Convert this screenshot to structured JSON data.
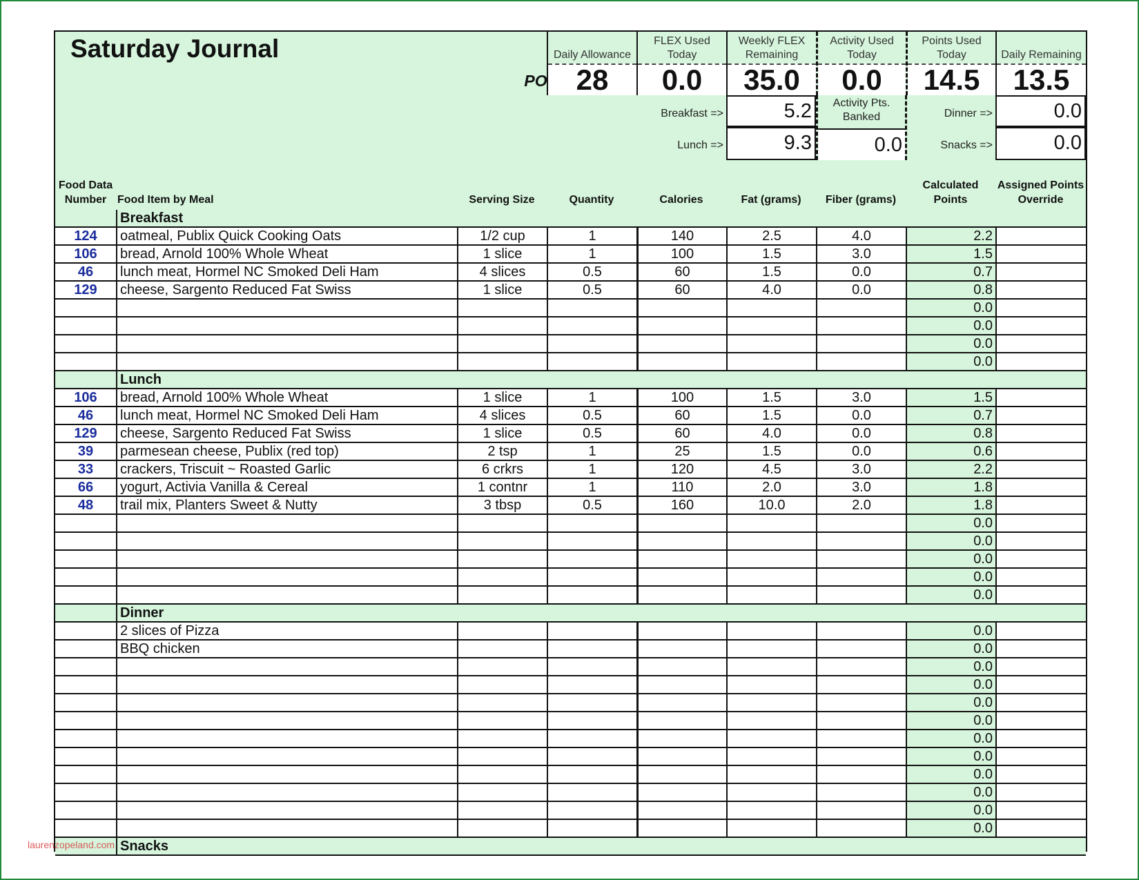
{
  "title": "Saturday Journal",
  "points_label": "POINTS®",
  "summary": [
    {
      "label": "Daily Allowance",
      "value": "28"
    },
    {
      "label": "FLEX Used Today",
      "value": "0.0"
    },
    {
      "label": "Weekly FLEX Remaining",
      "value": "35.0"
    },
    {
      "label": "Activity Used Today",
      "value": "0.0"
    },
    {
      "label": "Points Used Today",
      "value": "14.5"
    },
    {
      "label": "Daily Remaining",
      "value": "13.5"
    }
  ],
  "meal_totals": {
    "breakfast_label": "Breakfast =>",
    "breakfast_value": "5.2",
    "lunch_label": "Lunch =>",
    "lunch_value": "9.3",
    "dinner_label": "Dinner =>",
    "dinner_value": "0.0",
    "snacks_label": "Snacks =>",
    "snacks_value": "0.0",
    "banked_label": "Activity Pts. Banked",
    "banked_value": "0.0"
  },
  "columns": {
    "num": "Food Data Number",
    "item": "Food Item by Meal",
    "serving": "Serving Size",
    "quantity": "Quantity",
    "calories": "Calories",
    "fat": "Fat (grams)",
    "fiber": "Fiber (grams)",
    "points": "Calculated Points",
    "override": "Assigned Points Override"
  },
  "sections": [
    {
      "name": "Breakfast",
      "rows": [
        {
          "num": "124",
          "item": "oatmeal, Publix Quick Cooking Oats",
          "serving": "1/2 cup",
          "qty": "1",
          "cal": "140",
          "fat": "2.5",
          "fiber": "4.0",
          "pts": "2.2"
        },
        {
          "num": "106",
          "item": "bread, Arnold 100% Whole Wheat",
          "serving": "1 slice",
          "qty": "1",
          "cal": "100",
          "fat": "1.5",
          "fiber": "3.0",
          "pts": "1.5"
        },
        {
          "num": "46",
          "item": "lunch meat, Hormel NC Smoked Deli Ham",
          "serving": "4 slices",
          "qty": "0.5",
          "cal": "60",
          "fat": "1.5",
          "fiber": "0.0",
          "pts": "0.7"
        },
        {
          "num": "129",
          "item": "cheese, Sargento Reduced Fat Swiss",
          "serving": "1 slice",
          "qty": "0.5",
          "cal": "60",
          "fat": "4.0",
          "fiber": "0.0",
          "pts": "0.8"
        },
        {
          "num": "",
          "item": "",
          "serving": "",
          "qty": "",
          "cal": "",
          "fat": "",
          "fiber": "",
          "pts": "0.0"
        },
        {
          "num": "",
          "item": "",
          "serving": "",
          "qty": "",
          "cal": "",
          "fat": "",
          "fiber": "",
          "pts": "0.0"
        },
        {
          "num": "",
          "item": "",
          "serving": "",
          "qty": "",
          "cal": "",
          "fat": "",
          "fiber": "",
          "pts": "0.0"
        },
        {
          "num": "",
          "item": "",
          "serving": "",
          "qty": "",
          "cal": "",
          "fat": "",
          "fiber": "",
          "pts": "0.0"
        }
      ]
    },
    {
      "name": "Lunch",
      "rows": [
        {
          "num": "106",
          "item": "bread, Arnold 100% Whole Wheat",
          "serving": "1 slice",
          "qty": "1",
          "cal": "100",
          "fat": "1.5",
          "fiber": "3.0",
          "pts": "1.5"
        },
        {
          "num": "46",
          "item": "lunch meat, Hormel NC Smoked Deli Ham",
          "serving": "4 slices",
          "qty": "0.5",
          "cal": "60",
          "fat": "1.5",
          "fiber": "0.0",
          "pts": "0.7"
        },
        {
          "num": "129",
          "item": "cheese, Sargento Reduced Fat Swiss",
          "serving": "1 slice",
          "qty": "0.5",
          "cal": "60",
          "fat": "4.0",
          "fiber": "0.0",
          "pts": "0.8"
        },
        {
          "num": "39",
          "item": "parmesean cheese, Publix (red top)",
          "serving": "2 tsp",
          "qty": "1",
          "cal": "25",
          "fat": "1.5",
          "fiber": "0.0",
          "pts": "0.6"
        },
        {
          "num": "33",
          "item": "crackers, Triscuit ~ Roasted Garlic",
          "serving": "6 crkrs",
          "qty": "1",
          "cal": "120",
          "fat": "4.5",
          "fiber": "3.0",
          "pts": "2.2"
        },
        {
          "num": "66",
          "item": "yogurt, Activia Vanilla & Cereal",
          "serving": "1 contnr",
          "qty": "1",
          "cal": "110",
          "fat": "2.0",
          "fiber": "3.0",
          "pts": "1.8"
        },
        {
          "num": "48",
          "item": "trail mix, Planters Sweet & Nutty",
          "serving": "3 tbsp",
          "qty": "0.5",
          "cal": "160",
          "fat": "10.0",
          "fiber": "2.0",
          "pts": "1.8"
        },
        {
          "num": "",
          "item": "",
          "serving": "",
          "qty": "",
          "cal": "",
          "fat": "",
          "fiber": "",
          "pts": "0.0"
        },
        {
          "num": "",
          "item": "",
          "serving": "",
          "qty": "",
          "cal": "",
          "fat": "",
          "fiber": "",
          "pts": "0.0"
        },
        {
          "num": "",
          "item": "",
          "serving": "",
          "qty": "",
          "cal": "",
          "fat": "",
          "fiber": "",
          "pts": "0.0"
        },
        {
          "num": "",
          "item": "",
          "serving": "",
          "qty": "",
          "cal": "",
          "fat": "",
          "fiber": "",
          "pts": "0.0"
        },
        {
          "num": "",
          "item": "",
          "serving": "",
          "qty": "",
          "cal": "",
          "fat": "",
          "fiber": "",
          "pts": "0.0"
        }
      ]
    },
    {
      "name": "Dinner",
      "rows": [
        {
          "num": "",
          "item": "2 slices of Pizza",
          "serving": "",
          "qty": "",
          "cal": "",
          "fat": "",
          "fiber": "",
          "pts": "0.0"
        },
        {
          "num": "",
          "item": "BBQ chicken",
          "serving": "",
          "qty": "",
          "cal": "",
          "fat": "",
          "fiber": "",
          "pts": "0.0"
        },
        {
          "num": "",
          "item": "",
          "serving": "",
          "qty": "",
          "cal": "",
          "fat": "",
          "fiber": "",
          "pts": "0.0"
        },
        {
          "num": "",
          "item": "",
          "serving": "",
          "qty": "",
          "cal": "",
          "fat": "",
          "fiber": "",
          "pts": "0.0"
        },
        {
          "num": "",
          "item": "",
          "serving": "",
          "qty": "",
          "cal": "",
          "fat": "",
          "fiber": "",
          "pts": "0.0"
        },
        {
          "num": "",
          "item": "",
          "serving": "",
          "qty": "",
          "cal": "",
          "fat": "",
          "fiber": "",
          "pts": "0.0"
        },
        {
          "num": "",
          "item": "",
          "serving": "",
          "qty": "",
          "cal": "",
          "fat": "",
          "fiber": "",
          "pts": "0.0"
        },
        {
          "num": "",
          "item": "",
          "serving": "",
          "qty": "",
          "cal": "",
          "fat": "",
          "fiber": "",
          "pts": "0.0"
        },
        {
          "num": "",
          "item": "",
          "serving": "",
          "qty": "",
          "cal": "",
          "fat": "",
          "fiber": "",
          "pts": "0.0"
        },
        {
          "num": "",
          "item": "",
          "serving": "",
          "qty": "",
          "cal": "",
          "fat": "",
          "fiber": "",
          "pts": "0.0"
        },
        {
          "num": "",
          "item": "",
          "serving": "",
          "qty": "",
          "cal": "",
          "fat": "",
          "fiber": "",
          "pts": "0.0"
        },
        {
          "num": "",
          "item": "",
          "serving": "",
          "qty": "",
          "cal": "",
          "fat": "",
          "fiber": "",
          "pts": "0.0"
        }
      ]
    },
    {
      "name": "Snacks",
      "rows": []
    }
  ],
  "watermark": "laurenzopeland.com",
  "colors": {
    "accent_green": "#d6f5dc",
    "number_blue": "#1a2c9c",
    "frame_green": "#1e8a3a"
  }
}
